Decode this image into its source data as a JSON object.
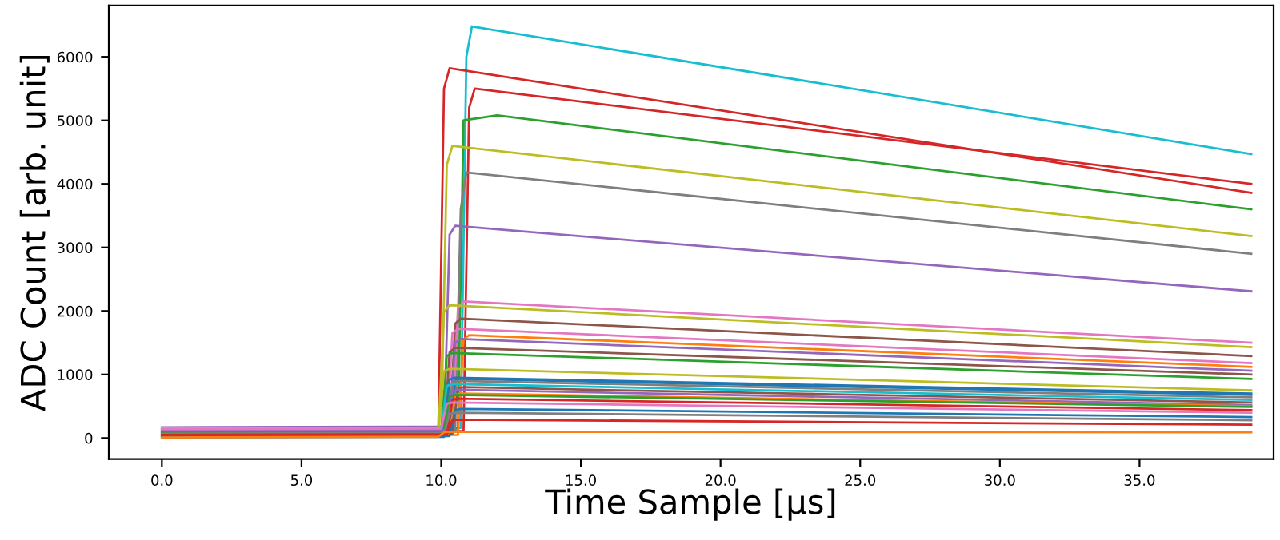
{
  "chart_data": {
    "type": "line",
    "xlabel": "Time Sample [μs]",
    "ylabel": "ADC Count [arb. unit]",
    "xlim": [
      -1.9,
      39.8
    ],
    "ylim": [
      -330,
      6810
    ],
    "xticks": [
      {
        "value": 0,
        "label": "0.0"
      },
      {
        "value": 5,
        "label": "5.0"
      },
      {
        "value": 10,
        "label": "10.0"
      },
      {
        "value": 15,
        "label": "15.0"
      },
      {
        "value": 20,
        "label": "20.0"
      },
      {
        "value": 25,
        "label": "25.0"
      },
      {
        "value": 30,
        "label": "30.0"
      },
      {
        "value": 35,
        "label": "35.0"
      }
    ],
    "yticks": [
      0,
      1000,
      2000,
      3000,
      4000,
      5000,
      6000
    ],
    "grid": false,
    "marker": "none",
    "line_style": "solid",
    "series": [
      {
        "color": "#17becf",
        "x": [
          0,
          10.7,
          10.9,
          11.1,
          39
        ],
        "values": [
          150,
          160,
          6000,
          6480,
          4470
        ]
      },
      {
        "color": "#d62728",
        "x": [
          0,
          9.9,
          10.1,
          10.3,
          39
        ],
        "values": [
          120,
          130,
          5500,
          5820,
          3860
        ]
      },
      {
        "color": "#d62728",
        "x": [
          0,
          10.8,
          11.0,
          11.2,
          39
        ],
        "values": [
          100,
          110,
          5200,
          5500,
          4000
        ]
      },
      {
        "color": "#2ca02c",
        "x": [
          0,
          10.6,
          10.8,
          12.0,
          39
        ],
        "values": [
          140,
          150,
          5000,
          5080,
          3600
        ]
      },
      {
        "color": "#bcbd22",
        "x": [
          0,
          10.0,
          10.2,
          10.4,
          39
        ],
        "values": [
          130,
          140,
          4300,
          4600,
          3180
        ]
      },
      {
        "color": "#7f7f7f",
        "x": [
          0,
          10.5,
          10.7,
          10.9,
          39
        ],
        "values": [
          110,
          120,
          3600,
          4180,
          2900
        ]
      },
      {
        "color": "#9467bd",
        "x": [
          0,
          10.1,
          10.3,
          10.5,
          39
        ],
        "values": [
          90,
          100,
          3200,
          3340,
          2310
        ]
      },
      {
        "color": "#e377c2",
        "x": [
          0,
          10.4,
          10.6,
          10.8,
          39
        ],
        "values": [
          160,
          170,
          2050,
          2150,
          1500
        ]
      },
      {
        "color": "#bcbd22",
        "x": [
          0,
          9.9,
          10.1,
          10.3,
          39
        ],
        "values": [
          70,
          80,
          1980,
          2090,
          1430
        ]
      },
      {
        "color": "#8c564b",
        "x": [
          0,
          10.3,
          10.5,
          10.7,
          39
        ],
        "values": [
          60,
          70,
          1800,
          1880,
          1290
        ]
      },
      {
        "color": "#e377c2",
        "x": [
          0,
          10.2,
          10.4,
          10.6,
          39
        ],
        "values": [
          50,
          60,
          1650,
          1720,
          1180
        ]
      },
      {
        "color": "#ff7f0e",
        "x": [
          0,
          10.6,
          10.8,
          11.0,
          39
        ],
        "values": [
          40,
          50,
          1550,
          1620,
          1120
        ]
      },
      {
        "color": "#9467bd",
        "x": [
          0,
          10.3,
          10.5,
          10.7,
          39
        ],
        "values": [
          170,
          180,
          1500,
          1560,
          1060
        ]
      },
      {
        "color": "#8c564b",
        "x": [
          0,
          10.1,
          10.3,
          10.5,
          39
        ],
        "values": [
          30,
          40,
          1350,
          1420,
          1000
        ]
      },
      {
        "color": "#2ca02c",
        "x": [
          0,
          10.0,
          10.2,
          10.4,
          39
        ],
        "values": [
          20,
          30,
          1290,
          1340,
          930
        ]
      },
      {
        "color": "#bcbd22",
        "x": [
          0,
          9.9,
          10.1,
          10.3,
          39
        ],
        "values": [
          150,
          160,
          1050,
          1090,
          750
        ]
      },
      {
        "color": "#1f77b4",
        "x": [
          0,
          10.1,
          10.3,
          10.5,
          39
        ],
        "values": [
          10,
          20,
          920,
          950,
          700
        ]
      },
      {
        "color": "#1f77b4",
        "x": [
          0,
          10.3,
          10.5,
          10.7,
          39
        ],
        "values": [
          130,
          140,
          900,
          930,
          680
        ]
      },
      {
        "color": "#7f7f7f",
        "x": [
          0,
          10.2,
          10.4,
          10.6,
          39
        ],
        "values": [
          80,
          90,
          870,
          900,
          640
        ]
      },
      {
        "color": "#17becf",
        "x": [
          0,
          10.0,
          10.2,
          10.4,
          39
        ],
        "values": [
          100,
          110,
          820,
          850,
          600
        ]
      },
      {
        "color": "#8c564b",
        "x": [
          0,
          10.4,
          10.6,
          10.8,
          39
        ],
        "values": [
          60,
          70,
          780,
          800,
          560
        ]
      },
      {
        "color": "#9467bd",
        "x": [
          0,
          10.2,
          10.4,
          10.6,
          39
        ],
        "values": [
          120,
          130,
          740,
          760,
          520
        ]
      },
      {
        "color": "#ff7f0e",
        "x": [
          0,
          10.3,
          10.5,
          10.7,
          39
        ],
        "values": [
          40,
          50,
          680,
          700,
          500
        ]
      },
      {
        "color": "#2ca02c",
        "x": [
          0,
          10.1,
          10.3,
          10.5,
          39
        ],
        "values": [
          90,
          100,
          660,
          680,
          490
        ]
      },
      {
        "color": "#d62728",
        "x": [
          0,
          10.2,
          10.4,
          10.6,
          39
        ],
        "values": [
          30,
          40,
          600,
          620,
          440
        ]
      },
      {
        "color": "#e377c2",
        "x": [
          0,
          10.0,
          10.2,
          10.4,
          39
        ],
        "values": [
          140,
          150,
          540,
          560,
          400
        ]
      },
      {
        "color": "#1f77b4",
        "x": [
          0,
          10.3,
          10.5,
          10.7,
          39
        ],
        "values": [
          20,
          30,
          440,
          460,
          330
        ]
      },
      {
        "color": "#7f7f7f",
        "x": [
          0,
          10.1,
          10.3,
          10.5,
          39
        ],
        "values": [
          70,
          80,
          380,
          400,
          280
        ]
      },
      {
        "color": "#d62728",
        "x": [
          0,
          10.2,
          10.4,
          10.6,
          39
        ],
        "values": [
          50,
          60,
          280,
          290,
          210
        ]
      },
      {
        "color": "#ff7f0e",
        "x": [
          0,
          9.9,
          10.1,
          10.3,
          39
        ],
        "values": [
          10,
          20,
          90,
          100,
          90
        ]
      }
    ]
  }
}
